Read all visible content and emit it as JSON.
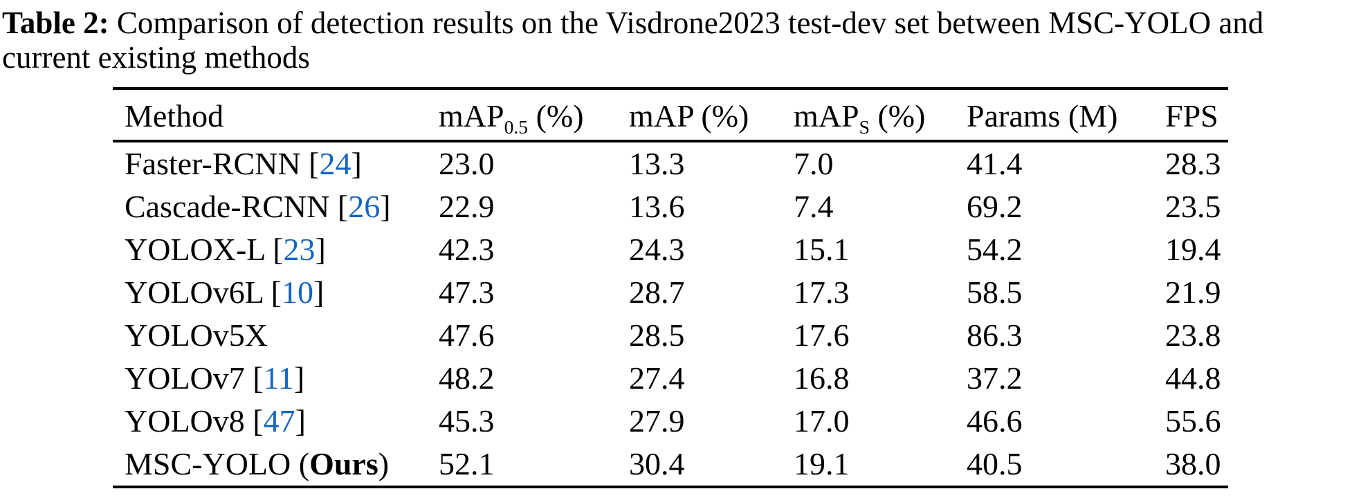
{
  "caption": {
    "label": "Table 2:",
    "line1": "Comparison of detection results on the Visdrone2023 test-dev set between MSC-YOLO and",
    "line2": "current existing methods"
  },
  "table": {
    "columns": [
      {
        "text": "Method"
      },
      {
        "text": "mAP",
        "sub": "0.5",
        "after": " (%)"
      },
      {
        "text": "mAP",
        "after": " (%)"
      },
      {
        "text": "mAP",
        "sub": "S",
        "after": " (%)"
      },
      {
        "text": "Params (M)"
      },
      {
        "text": "FPS"
      }
    ],
    "rows": [
      {
        "method": [
          {
            "text": "Faster-RCNN [",
            "style": "plain"
          },
          {
            "text": "24",
            "style": "cite"
          },
          {
            "text": "]",
            "style": "plain"
          }
        ],
        "values": [
          {
            "text": "23.0",
            "bold": false
          },
          {
            "text": "13.3",
            "bold": false
          },
          {
            "text": "7.0",
            "bold": false
          },
          {
            "text": "41.4",
            "bold": false
          },
          {
            "text": "28.3",
            "bold": false
          }
        ]
      },
      {
        "method": [
          {
            "text": "Cascade-RCNN [",
            "style": "plain"
          },
          {
            "text": "26",
            "style": "cite"
          },
          {
            "text": "]",
            "style": "plain"
          }
        ],
        "values": [
          {
            "text": "22.9",
            "bold": false
          },
          {
            "text": "13.6",
            "bold": false
          },
          {
            "text": "7.4",
            "bold": false
          },
          {
            "text": "69.2",
            "bold": false
          },
          {
            "text": "23.5",
            "bold": false
          }
        ]
      },
      {
        "method": [
          {
            "text": "YOLOX-L [",
            "style": "plain"
          },
          {
            "text": "23",
            "style": "cite"
          },
          {
            "text": "]",
            "style": "plain"
          }
        ],
        "values": [
          {
            "text": "42.3",
            "bold": false
          },
          {
            "text": "24.3",
            "bold": false
          },
          {
            "text": "15.1",
            "bold": false
          },
          {
            "text": "54.2",
            "bold": false
          },
          {
            "text": "19.4",
            "bold": false
          }
        ]
      },
      {
        "method": [
          {
            "text": "YOLOv6L [",
            "style": "plain"
          },
          {
            "text": "10",
            "style": "cite"
          },
          {
            "text": "]",
            "style": "plain"
          }
        ],
        "values": [
          {
            "text": "47.3",
            "bold": false
          },
          {
            "text": "28.7",
            "bold": true
          },
          {
            "text": "17.3",
            "bold": false
          },
          {
            "text": "58.5",
            "bold": false
          },
          {
            "text": "21.9",
            "bold": false
          }
        ]
      },
      {
        "method": [
          {
            "text": "YOLOv5X",
            "style": "plain"
          }
        ],
        "values": [
          {
            "text": "47.6",
            "bold": false
          },
          {
            "text": "28.5",
            "bold": false
          },
          {
            "text": "17.6",
            "bold": true
          },
          {
            "text": "86.3",
            "bold": false
          },
          {
            "text": "23.8",
            "bold": false
          }
        ]
      },
      {
        "method": [
          {
            "text": "YOLOv7 [",
            "style": "plain"
          },
          {
            "text": "11",
            "style": "cite"
          },
          {
            "text": "]",
            "style": "plain"
          }
        ],
        "values": [
          {
            "text": "48.2",
            "bold": true
          },
          {
            "text": "27.4",
            "bold": false
          },
          {
            "text": "16.8",
            "bold": false
          },
          {
            "text": "37.2",
            "bold": true
          },
          {
            "text": "44.8",
            "bold": true
          }
        ]
      },
      {
        "method": [
          {
            "text": "YOLOv8 [",
            "style": "plain"
          },
          {
            "text": "47",
            "style": "cite"
          },
          {
            "text": "]",
            "style": "plain"
          }
        ],
        "values": [
          {
            "text": "45.3",
            "bold": false
          },
          {
            "text": "27.9",
            "bold": false
          },
          {
            "text": "17.0",
            "bold": false
          },
          {
            "text": "46.6",
            "bold": false
          },
          {
            "text": "55.6",
            "bold": true
          }
        ]
      },
      {
        "method": [
          {
            "text": "MSC-YOLO (",
            "style": "plain"
          },
          {
            "text": "Ours",
            "style": "bold"
          },
          {
            "text": ")",
            "style": "plain"
          }
        ],
        "values": [
          {
            "text": "52.1",
            "bold": true
          },
          {
            "text": "30.4",
            "bold": true
          },
          {
            "text": "19.1",
            "bold": true
          },
          {
            "text": "40.5",
            "bold": true
          },
          {
            "text": "38.0",
            "bold": false
          }
        ]
      }
    ]
  },
  "colors": {
    "citation_blue": "#1565c0",
    "text": "#000000",
    "background": "#ffffff",
    "rule": "#000000"
  }
}
